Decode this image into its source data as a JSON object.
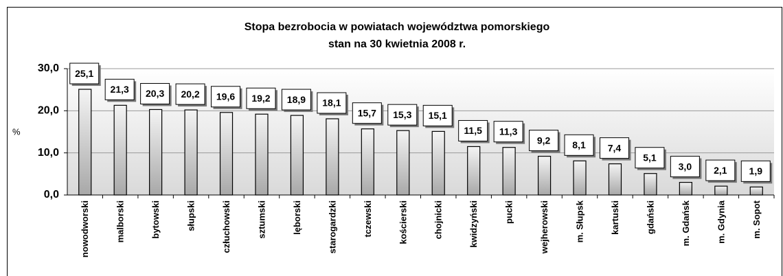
{
  "chart_data": {
    "type": "bar",
    "title": "Stopa bezrobocia w powiatach województwa pomorskiego",
    "subtitle": "stan na 30 kwietnia 2008 r.",
    "y_label": "%",
    "categories": [
      "nowodworski",
      "malborski",
      "bytowski",
      "słupski",
      "człuchowski",
      "sztumski",
      "lęborski",
      "starogardzki",
      "tczewski",
      "kościerski",
      "chojnicki",
      "kwidzyński",
      "pucki",
      "wejherowski",
      "m. Słupsk",
      "kartuski",
      "gdański",
      "m. Gdańsk",
      "m. Gdynia",
      "m. Sopot"
    ],
    "values": [
      25.1,
      21.3,
      20.3,
      20.2,
      19.6,
      19.2,
      18.9,
      18.1,
      15.7,
      15.3,
      15.1,
      11.5,
      11.3,
      9.2,
      8.1,
      7.4,
      5.1,
      3.0,
      2.1,
      1.9
    ],
    "value_labels": [
      "25,1",
      "21,3",
      "20,3",
      "20,2",
      "19,6",
      "19,2",
      "18,9",
      "18,1",
      "15,7",
      "15,3",
      "15,1",
      "11,5",
      "11,3",
      "9,2",
      "8,1",
      "7,4",
      "5,1",
      "3,0",
      "2,1",
      "1,9"
    ],
    "color": "#b8b8b8",
    "ylim": [
      0,
      30
    ],
    "yticks": [
      {
        "value": 0,
        "label": "0,0"
      },
      {
        "value": 10,
        "label": "10,0"
      },
      {
        "value": 20,
        "label": "20,0"
      },
      {
        "value": 30,
        "label": "30,0"
      }
    ],
    "grid": true
  }
}
